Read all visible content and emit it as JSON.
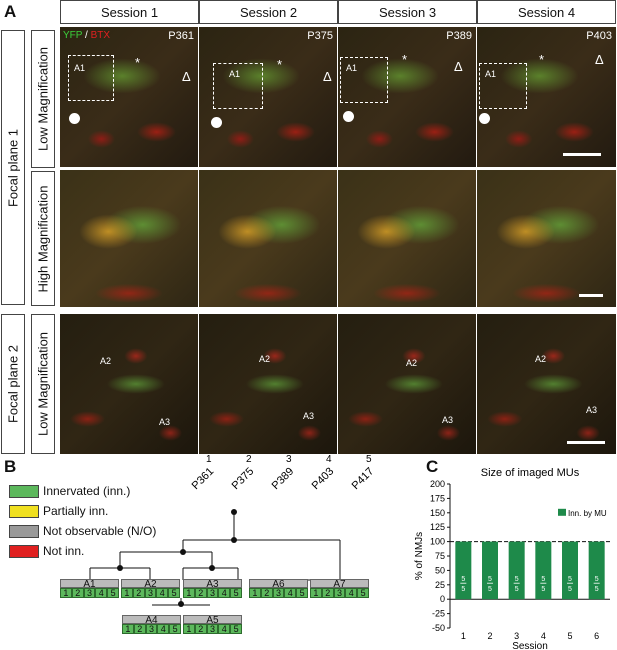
{
  "panels": {
    "a": "A",
    "b": "B",
    "c": "C"
  },
  "sessions": [
    "Session 1",
    "Session 2",
    "Session 3",
    "Session 4"
  ],
  "ages": [
    "P361",
    "P375",
    "P389",
    "P403"
  ],
  "focal_planes": [
    "Focal plane 1",
    "Focal plane 2"
  ],
  "row_labels": [
    "Low Magnification",
    "High Magnification",
    "Low Magnification"
  ],
  "stain": {
    "yfp": "YFP",
    "sep": " / ",
    "btx": "BTX",
    "yfp_color": "#3bd13b",
    "btx_color": "#e02020"
  },
  "markers": {
    "asterisk": "*",
    "delta": "Δ"
  },
  "nmj_labels": {
    "a1": "A1",
    "a2": "A2",
    "a3": "A3"
  },
  "legend": [
    {
      "label": "Innervated (inn.)",
      "color": "#5cb85c"
    },
    {
      "label": "Partially inn.",
      "color": "#f0e020"
    },
    {
      "label": "Not observable (N/O)",
      "color": "#999999"
    },
    {
      "label": "Not inn.",
      "color": "#e02020"
    }
  ],
  "tree": {
    "session_labels": [
      {
        "age": "P361",
        "num": "1"
      },
      {
        "age": "P375",
        "num": "2"
      },
      {
        "age": "P389",
        "num": "3"
      },
      {
        "age": "P403",
        "num": "4"
      },
      {
        "age": "P417",
        "num": "5"
      }
    ],
    "nodes": [
      "A1",
      "A2",
      "A3",
      "A6",
      "A7",
      "A4",
      "A5"
    ],
    "cells": [
      "1",
      "2",
      "3",
      "4",
      "5"
    ]
  },
  "chart_data": {
    "type": "bar",
    "title": "Size of imaged MUs",
    "xlabel": "Session",
    "ylabel": "% of NMJs",
    "categories": [
      "1",
      "2",
      "3",
      "4",
      "5",
      "6"
    ],
    "series": [
      {
        "name": "Inn. by MU",
        "values": [
          100,
          100,
          100,
          100,
          100,
          100
        ],
        "color": "#1e8a4a"
      }
    ],
    "bar_labels": [
      "5/5",
      "5/5",
      "5/5",
      "5/5",
      "5/5",
      "5/5"
    ],
    "ylim": [
      -50,
      200
    ],
    "yticks": [
      -50,
      -25,
      0,
      25,
      50,
      75,
      100,
      125,
      150,
      175,
      200
    ],
    "reference_line": 100,
    "legend_position": "top-right"
  }
}
